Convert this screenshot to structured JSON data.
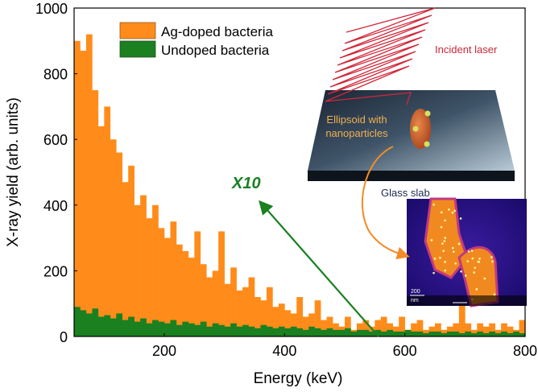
{
  "chart_data": {
    "type": "bar",
    "title": "",
    "xlabel": "Energy (keV)",
    "ylabel": "X-ray yield (arb. units)",
    "xlim": [
      50,
      800
    ],
    "ylim": [
      0,
      1000
    ],
    "xticks": [
      200,
      400,
      600,
      800
    ],
    "yticks": [
      0,
      200,
      400,
      600,
      800,
      1000
    ],
    "grid": false,
    "legend": "top-left",
    "x": [
      50,
      60,
      70,
      80,
      90,
      100,
      110,
      120,
      130,
      140,
      150,
      160,
      170,
      180,
      190,
      200,
      210,
      220,
      230,
      240,
      250,
      260,
      270,
      280,
      290,
      300,
      310,
      320,
      330,
      340,
      350,
      360,
      370,
      380,
      390,
      400,
      410,
      420,
      430,
      440,
      450,
      460,
      470,
      480,
      490,
      500,
      510,
      520,
      530,
      540,
      550,
      560,
      570,
      580,
      590,
      600,
      610,
      620,
      630,
      640,
      650,
      660,
      670,
      680,
      690,
      700,
      710,
      720,
      730,
      740,
      750,
      760,
      770,
      780,
      790
    ],
    "series": [
      {
        "name": "Ag-doped bacteria",
        "color": "#ff8c1a",
        "values": [
          900,
          870,
          920,
          750,
          640,
          700,
          600,
          560,
          470,
          520,
          400,
          430,
          360,
          400,
          330,
          300,
          350,
          280,
          260,
          240,
          320,
          220,
          180,
          200,
          320,
          160,
          210,
          140,
          150,
          180,
          120,
          110,
          150,
          90,
          100,
          80,
          70,
          120,
          60,
          70,
          110,
          50,
          60,
          40,
          30,
          60,
          20,
          40,
          50,
          30,
          50,
          60,
          40,
          30,
          60,
          20,
          40,
          50,
          20,
          30,
          40,
          20,
          30,
          40,
          130,
          40,
          20,
          40,
          30,
          40,
          20,
          40,
          30,
          20,
          50
        ]
      },
      {
        "name": "Undoped bacteria",
        "color": "#1a8020",
        "values": [
          90,
          80,
          70,
          85,
          60,
          65,
          55,
          70,
          50,
          60,
          45,
          55,
          40,
          50,
          45,
          40,
          50,
          35,
          45,
          40,
          35,
          45,
          30,
          40,
          35,
          30,
          40,
          30,
          35,
          30,
          25,
          35,
          30,
          25,
          30,
          25,
          30,
          25,
          20,
          30,
          25,
          20,
          25,
          20,
          20,
          25,
          15,
          20,
          20,
          15,
          20,
          15,
          20,
          15,
          15,
          20,
          15,
          15,
          10,
          15,
          15,
          10,
          15,
          15,
          10,
          15,
          10,
          15,
          10,
          15,
          10,
          15,
          10,
          15,
          10
        ]
      }
    ],
    "annotations": {
      "multiplier": "X10",
      "multiplier_color": "#1a8020",
      "inset": {
        "laser_label": "Incident laser",
        "ellipsoid_label_line1": "Ellipsoid with",
        "ellipsoid_label_line2": "nanoparticles",
        "slab_label": "Glass slab",
        "scale_bar_value": "200",
        "scale_bar_unit": "nm"
      }
    }
  }
}
